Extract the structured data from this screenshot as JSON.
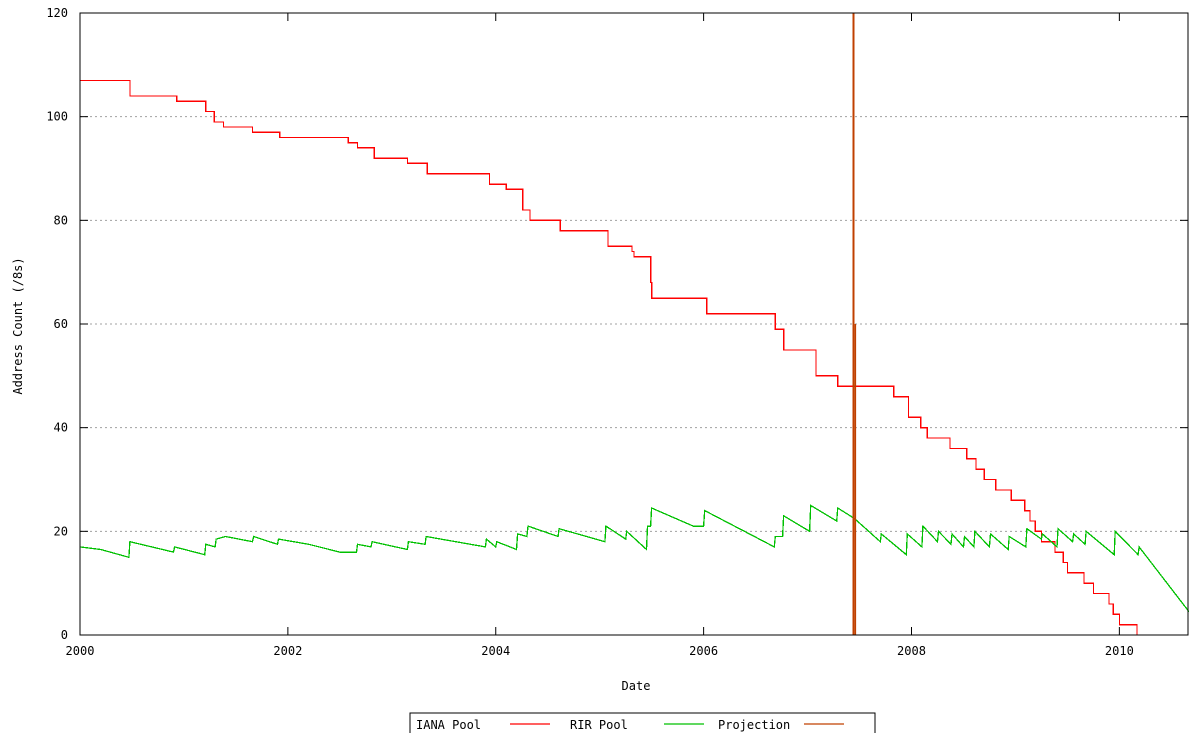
{
  "chart_data": {
    "type": "line",
    "title": "",
    "xlabel": "Date",
    "ylabel": "Address Count (/8s)",
    "xlim": [
      2000.0,
      2010.67
    ],
    "ylim": [
      0,
      120
    ],
    "x_ticks": [
      {
        "value": 2000,
        "label": "2000"
      },
      {
        "value": 2002,
        "label": "2002"
      },
      {
        "value": 2004,
        "label": "2004"
      },
      {
        "value": 2006,
        "label": "2006"
      },
      {
        "value": 2008,
        "label": "2008"
      },
      {
        "value": 2010,
        "label": "2010"
      }
    ],
    "y_ticks": [
      {
        "value": 0,
        "label": "0"
      },
      {
        "value": 20,
        "label": "20"
      },
      {
        "value": 40,
        "label": "40"
      },
      {
        "value": 60,
        "label": "60"
      },
      {
        "value": 80,
        "label": "80"
      },
      {
        "value": 100,
        "label": "100"
      },
      {
        "value": 120,
        "label": "120"
      }
    ],
    "grid": "horizontal-dotted",
    "legend_position": "bottom-center",
    "series": [
      {
        "name": "IANA Pool",
        "color": "#ff0000",
        "step": true,
        "points": [
          [
            2000.0,
            107
          ],
          [
            2000.48,
            104
          ],
          [
            2000.93,
            103
          ],
          [
            2001.21,
            101
          ],
          [
            2001.29,
            99
          ],
          [
            2001.38,
            98
          ],
          [
            2001.66,
            97
          ],
          [
            2001.92,
            96
          ],
          [
            2002.58,
            95
          ],
          [
            2002.67,
            94
          ],
          [
            2002.83,
            92
          ],
          [
            2003.15,
            91
          ],
          [
            2003.34,
            89
          ],
          [
            2003.94,
            87
          ],
          [
            2004.1,
            86
          ],
          [
            2004.26,
            82
          ],
          [
            2004.33,
            80
          ],
          [
            2004.62,
            78
          ],
          [
            2005.08,
            75
          ],
          [
            2005.31,
            74
          ],
          [
            2005.33,
            73
          ],
          [
            2005.49,
            68
          ],
          [
            2005.5,
            65
          ],
          [
            2006.03,
            62
          ],
          [
            2006.69,
            59
          ],
          [
            2006.77,
            55
          ],
          [
            2007.08,
            50
          ],
          [
            2007.29,
            48
          ],
          [
            2007.83,
            46
          ],
          [
            2007.97,
            42
          ],
          [
            2008.09,
            40
          ],
          [
            2008.15,
            38
          ],
          [
            2008.37,
            36
          ],
          [
            2008.53,
            34
          ],
          [
            2008.62,
            32
          ],
          [
            2008.7,
            30
          ],
          [
            2008.81,
            28
          ],
          [
            2008.96,
            26
          ],
          [
            2009.09,
            24
          ],
          [
            2009.14,
            22
          ],
          [
            2009.19,
            20
          ],
          [
            2009.25,
            18
          ],
          [
            2009.38,
            16
          ],
          [
            2009.46,
            14
          ],
          [
            2009.5,
            12
          ],
          [
            2009.66,
            10
          ],
          [
            2009.75,
            8
          ],
          [
            2009.9,
            6
          ],
          [
            2009.94,
            4
          ],
          [
            2010.0,
            2
          ],
          [
            2010.17,
            0
          ]
        ]
      },
      {
        "name": "RIR Pool",
        "color": "#00c000",
        "step": false,
        "points": [
          [
            2000.0,
            17
          ],
          [
            2000.2,
            16.5
          ],
          [
            2000.47,
            15
          ],
          [
            2000.48,
            18
          ],
          [
            2000.9,
            16
          ],
          [
            2000.91,
            17
          ],
          [
            2001.2,
            15.5
          ],
          [
            2001.21,
            17.5
          ],
          [
            2001.3,
            17
          ],
          [
            2001.31,
            18.5
          ],
          [
            2001.4,
            19
          ],
          [
            2001.66,
            18
          ],
          [
            2001.67,
            19
          ],
          [
            2001.9,
            17.5
          ],
          [
            2001.91,
            18.5
          ],
          [
            2002.2,
            17.5
          ],
          [
            2002.5,
            16
          ],
          [
            2002.66,
            16
          ],
          [
            2002.67,
            17.5
          ],
          [
            2002.8,
            17
          ],
          [
            2002.81,
            18
          ],
          [
            2003.15,
            16.5
          ],
          [
            2003.16,
            18
          ],
          [
            2003.32,
            17.5
          ],
          [
            2003.33,
            19
          ],
          [
            2003.9,
            17
          ],
          [
            2003.91,
            18.5
          ],
          [
            2004.0,
            17
          ],
          [
            2004.01,
            18
          ],
          [
            2004.2,
            16.5
          ],
          [
            2004.21,
            19.5
          ],
          [
            2004.3,
            19
          ],
          [
            2004.31,
            21
          ],
          [
            2004.6,
            19
          ],
          [
            2004.61,
            20.5
          ],
          [
            2005.05,
            18
          ],
          [
            2005.06,
            21
          ],
          [
            2005.25,
            18.5
          ],
          [
            2005.26,
            20
          ],
          [
            2005.45,
            16.5
          ],
          [
            2005.46,
            21
          ],
          [
            2005.49,
            21
          ],
          [
            2005.5,
            24.5
          ],
          [
            2005.9,
            21
          ],
          [
            2006.0,
            21
          ],
          [
            2006.01,
            24
          ],
          [
            2006.68,
            17
          ],
          [
            2006.69,
            19
          ],
          [
            2006.76,
            19
          ],
          [
            2006.77,
            23
          ],
          [
            2007.02,
            20
          ],
          [
            2007.03,
            25
          ],
          [
            2007.28,
            22
          ],
          [
            2007.29,
            24.5
          ],
          [
            2007.45,
            22.5
          ],
          [
            2007.7,
            18
          ],
          [
            2007.71,
            19.5
          ],
          [
            2007.95,
            15.5
          ],
          [
            2007.96,
            19.5
          ],
          [
            2008.1,
            17
          ],
          [
            2008.11,
            21
          ],
          [
            2008.25,
            18
          ],
          [
            2008.26,
            20
          ],
          [
            2008.38,
            17.5
          ],
          [
            2008.39,
            19.5
          ],
          [
            2008.5,
            17
          ],
          [
            2008.51,
            19
          ],
          [
            2008.6,
            17
          ],
          [
            2008.61,
            20
          ],
          [
            2008.75,
            17
          ],
          [
            2008.76,
            19.5
          ],
          [
            2008.93,
            16.5
          ],
          [
            2008.94,
            19
          ],
          [
            2009.1,
            17
          ],
          [
            2009.11,
            20.5
          ],
          [
            2009.25,
            18.5
          ],
          [
            2009.26,
            19.5
          ],
          [
            2009.4,
            17
          ],
          [
            2009.41,
            20.5
          ],
          [
            2009.55,
            18
          ],
          [
            2009.56,
            19.5
          ],
          [
            2009.67,
            17.5
          ],
          [
            2009.68,
            20
          ],
          [
            2009.95,
            15.5
          ],
          [
            2009.96,
            20
          ],
          [
            2010.18,
            15.5
          ],
          [
            2010.19,
            17
          ],
          [
            2010.67,
            4.5
          ]
        ]
      },
      {
        "name": "Projection",
        "color": "#c04000",
        "step": false,
        "points": [
          [
            2007.44,
            120
          ],
          [
            2007.44,
            0
          ]
        ]
      }
    ],
    "annotations": [
      {
        "color": "#c04000",
        "points": [
          [
            2007.46,
            60
          ],
          [
            2007.46,
            0
          ]
        ]
      }
    ]
  }
}
